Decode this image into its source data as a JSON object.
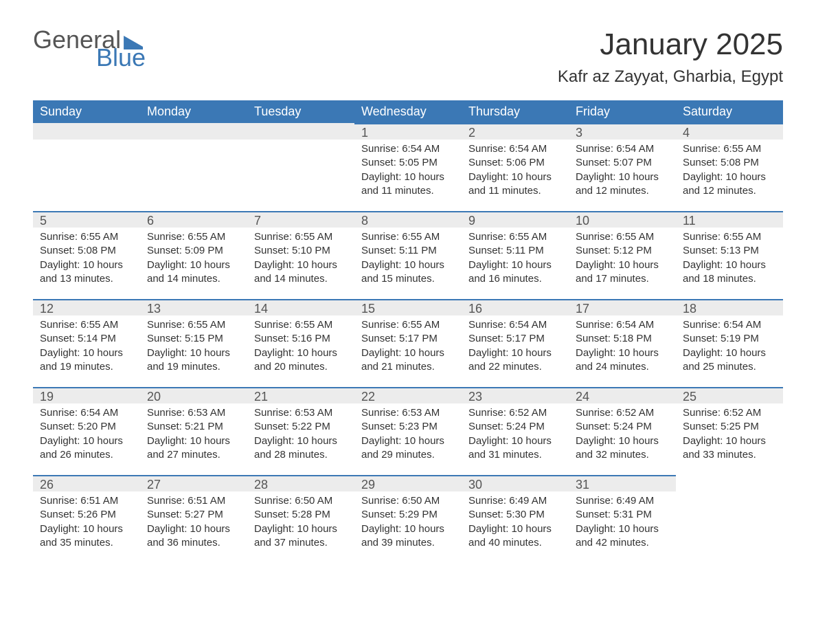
{
  "logo": {
    "word1": "General",
    "word2": "Blue"
  },
  "header": {
    "month_title": "January 2025",
    "location": "Kafr az Zayyat, Gharbia, Egypt"
  },
  "colors": {
    "accent": "#3b78b5",
    "band_bg": "#ececec",
    "text": "#333333",
    "muted": "#555555",
    "white": "#ffffff"
  },
  "weekdays": [
    "Sunday",
    "Monday",
    "Tuesday",
    "Wednesday",
    "Thursday",
    "Friday",
    "Saturday"
  ],
  "labels": {
    "sunrise": "Sunrise",
    "sunset": "Sunset",
    "daylight": "Daylight"
  },
  "weeks": [
    [
      null,
      null,
      null,
      {
        "n": 1,
        "sunrise": "6:54 AM",
        "sunset": "5:05 PM",
        "daylight": "10 hours and 11 minutes."
      },
      {
        "n": 2,
        "sunrise": "6:54 AM",
        "sunset": "5:06 PM",
        "daylight": "10 hours and 11 minutes."
      },
      {
        "n": 3,
        "sunrise": "6:54 AM",
        "sunset": "5:07 PM",
        "daylight": "10 hours and 12 minutes."
      },
      {
        "n": 4,
        "sunrise": "6:55 AM",
        "sunset": "5:08 PM",
        "daylight": "10 hours and 12 minutes."
      }
    ],
    [
      {
        "n": 5,
        "sunrise": "6:55 AM",
        "sunset": "5:08 PM",
        "daylight": "10 hours and 13 minutes."
      },
      {
        "n": 6,
        "sunrise": "6:55 AM",
        "sunset": "5:09 PM",
        "daylight": "10 hours and 14 minutes."
      },
      {
        "n": 7,
        "sunrise": "6:55 AM",
        "sunset": "5:10 PM",
        "daylight": "10 hours and 14 minutes."
      },
      {
        "n": 8,
        "sunrise": "6:55 AM",
        "sunset": "5:11 PM",
        "daylight": "10 hours and 15 minutes."
      },
      {
        "n": 9,
        "sunrise": "6:55 AM",
        "sunset": "5:11 PM",
        "daylight": "10 hours and 16 minutes."
      },
      {
        "n": 10,
        "sunrise": "6:55 AM",
        "sunset": "5:12 PM",
        "daylight": "10 hours and 17 minutes."
      },
      {
        "n": 11,
        "sunrise": "6:55 AM",
        "sunset": "5:13 PM",
        "daylight": "10 hours and 18 minutes."
      }
    ],
    [
      {
        "n": 12,
        "sunrise": "6:55 AM",
        "sunset": "5:14 PM",
        "daylight": "10 hours and 19 minutes."
      },
      {
        "n": 13,
        "sunrise": "6:55 AM",
        "sunset": "5:15 PM",
        "daylight": "10 hours and 19 minutes."
      },
      {
        "n": 14,
        "sunrise": "6:55 AM",
        "sunset": "5:16 PM",
        "daylight": "10 hours and 20 minutes."
      },
      {
        "n": 15,
        "sunrise": "6:55 AM",
        "sunset": "5:17 PM",
        "daylight": "10 hours and 21 minutes."
      },
      {
        "n": 16,
        "sunrise": "6:54 AM",
        "sunset": "5:17 PM",
        "daylight": "10 hours and 22 minutes."
      },
      {
        "n": 17,
        "sunrise": "6:54 AM",
        "sunset": "5:18 PM",
        "daylight": "10 hours and 24 minutes."
      },
      {
        "n": 18,
        "sunrise": "6:54 AM",
        "sunset": "5:19 PM",
        "daylight": "10 hours and 25 minutes."
      }
    ],
    [
      {
        "n": 19,
        "sunrise": "6:54 AM",
        "sunset": "5:20 PM",
        "daylight": "10 hours and 26 minutes."
      },
      {
        "n": 20,
        "sunrise": "6:53 AM",
        "sunset": "5:21 PM",
        "daylight": "10 hours and 27 minutes."
      },
      {
        "n": 21,
        "sunrise": "6:53 AM",
        "sunset": "5:22 PM",
        "daylight": "10 hours and 28 minutes."
      },
      {
        "n": 22,
        "sunrise": "6:53 AM",
        "sunset": "5:23 PM",
        "daylight": "10 hours and 29 minutes."
      },
      {
        "n": 23,
        "sunrise": "6:52 AM",
        "sunset": "5:24 PM",
        "daylight": "10 hours and 31 minutes."
      },
      {
        "n": 24,
        "sunrise": "6:52 AM",
        "sunset": "5:24 PM",
        "daylight": "10 hours and 32 minutes."
      },
      {
        "n": 25,
        "sunrise": "6:52 AM",
        "sunset": "5:25 PM",
        "daylight": "10 hours and 33 minutes."
      }
    ],
    [
      {
        "n": 26,
        "sunrise": "6:51 AM",
        "sunset": "5:26 PM",
        "daylight": "10 hours and 35 minutes."
      },
      {
        "n": 27,
        "sunrise": "6:51 AM",
        "sunset": "5:27 PM",
        "daylight": "10 hours and 36 minutes."
      },
      {
        "n": 28,
        "sunrise": "6:50 AM",
        "sunset": "5:28 PM",
        "daylight": "10 hours and 37 minutes."
      },
      {
        "n": 29,
        "sunrise": "6:50 AM",
        "sunset": "5:29 PM",
        "daylight": "10 hours and 39 minutes."
      },
      {
        "n": 30,
        "sunrise": "6:49 AM",
        "sunset": "5:30 PM",
        "daylight": "10 hours and 40 minutes."
      },
      {
        "n": 31,
        "sunrise": "6:49 AM",
        "sunset": "5:31 PM",
        "daylight": "10 hours and 42 minutes."
      },
      null
    ]
  ]
}
